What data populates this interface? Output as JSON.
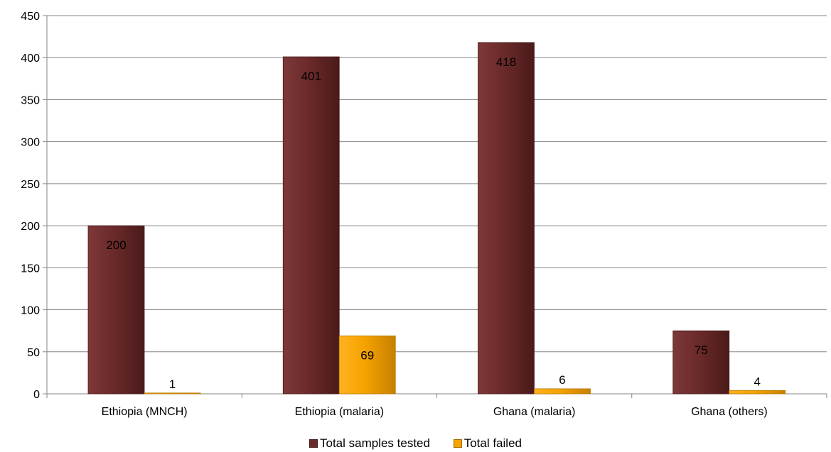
{
  "chart_data": {
    "type": "bar",
    "categories": [
      "Ethiopia (MNCH)",
      "Ethiopia (malaria)",
      "Ghana (malaria)",
      "Ghana (others)"
    ],
    "series": [
      {
        "name": "Total samples tested",
        "values": [
          200,
          401,
          418,
          75
        ],
        "color": "#6b2a2a"
      },
      {
        "name": "Total failed",
        "values": [
          1,
          69,
          6,
          4
        ],
        "color": "#f5a300"
      }
    ],
    "ylim": [
      0,
      450
    ],
    "yticks": [
      0,
      50,
      100,
      150,
      200,
      250,
      300,
      350,
      400,
      450
    ],
    "grid": true,
    "legend": "bottom"
  }
}
